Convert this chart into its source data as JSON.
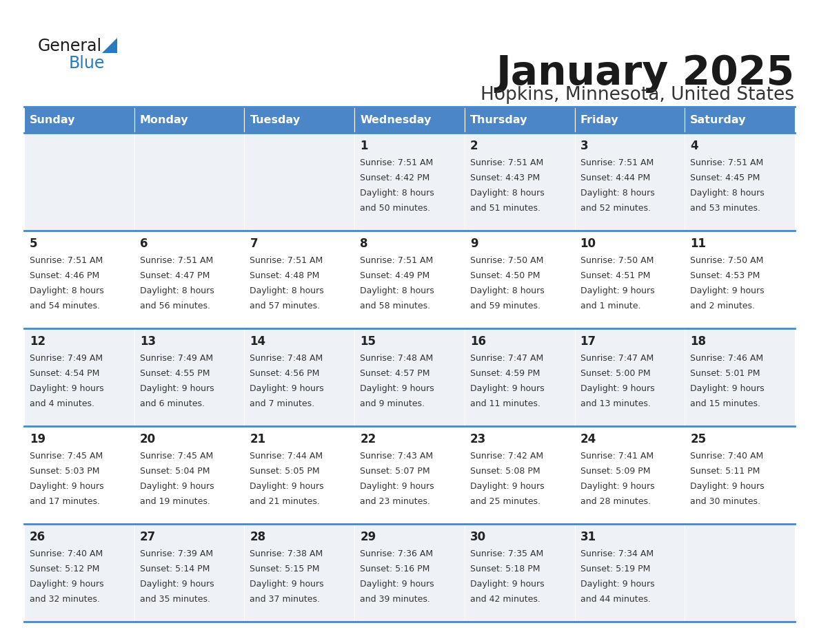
{
  "title": "January 2025",
  "subtitle": "Hopkins, Minnesota, United States",
  "days_of_week": [
    "Sunday",
    "Monday",
    "Tuesday",
    "Wednesday",
    "Thursday",
    "Friday",
    "Saturday"
  ],
  "header_bg": "#4a86c8",
  "header_text": "#ffffff",
  "row_bg_odd": "#eef2f7",
  "row_bg_even": "#ffffff",
  "cell_border": "#4a86c8",
  "day_num_color": "#222222",
  "text_color": "#333333",
  "logo_general_color": "#222222",
  "logo_blue_color": "#2a7abf",
  "calendar_data": [
    [
      {
        "day": null,
        "sunrise": null,
        "sunset": null,
        "daylight": null
      },
      {
        "day": null,
        "sunrise": null,
        "sunset": null,
        "daylight": null
      },
      {
        "day": null,
        "sunrise": null,
        "sunset": null,
        "daylight": null
      },
      {
        "day": "1",
        "sunrise": "7:51 AM",
        "sunset": "4:42 PM",
        "daylight": "8 hours",
        "daylight2": "and 50 minutes."
      },
      {
        "day": "2",
        "sunrise": "7:51 AM",
        "sunset": "4:43 PM",
        "daylight": "8 hours",
        "daylight2": "and 51 minutes."
      },
      {
        "day": "3",
        "sunrise": "7:51 AM",
        "sunset": "4:44 PM",
        "daylight": "8 hours",
        "daylight2": "and 52 minutes."
      },
      {
        "day": "4",
        "sunrise": "7:51 AM",
        "sunset": "4:45 PM",
        "daylight": "8 hours",
        "daylight2": "and 53 minutes."
      }
    ],
    [
      {
        "day": "5",
        "sunrise": "7:51 AM",
        "sunset": "4:46 PM",
        "daylight": "8 hours",
        "daylight2": "and 54 minutes."
      },
      {
        "day": "6",
        "sunrise": "7:51 AM",
        "sunset": "4:47 PM",
        "daylight": "8 hours",
        "daylight2": "and 56 minutes."
      },
      {
        "day": "7",
        "sunrise": "7:51 AM",
        "sunset": "4:48 PM",
        "daylight": "8 hours",
        "daylight2": "and 57 minutes."
      },
      {
        "day": "8",
        "sunrise": "7:51 AM",
        "sunset": "4:49 PM",
        "daylight": "8 hours",
        "daylight2": "and 58 minutes."
      },
      {
        "day": "9",
        "sunrise": "7:50 AM",
        "sunset": "4:50 PM",
        "daylight": "8 hours",
        "daylight2": "and 59 minutes."
      },
      {
        "day": "10",
        "sunrise": "7:50 AM",
        "sunset": "4:51 PM",
        "daylight": "9 hours",
        "daylight2": "and 1 minute."
      },
      {
        "day": "11",
        "sunrise": "7:50 AM",
        "sunset": "4:53 PM",
        "daylight": "9 hours",
        "daylight2": "and 2 minutes."
      }
    ],
    [
      {
        "day": "12",
        "sunrise": "7:49 AM",
        "sunset": "4:54 PM",
        "daylight": "9 hours",
        "daylight2": "and 4 minutes."
      },
      {
        "day": "13",
        "sunrise": "7:49 AM",
        "sunset": "4:55 PM",
        "daylight": "9 hours",
        "daylight2": "and 6 minutes."
      },
      {
        "day": "14",
        "sunrise": "7:48 AM",
        "sunset": "4:56 PM",
        "daylight": "9 hours",
        "daylight2": "and 7 minutes."
      },
      {
        "day": "15",
        "sunrise": "7:48 AM",
        "sunset": "4:57 PM",
        "daylight": "9 hours",
        "daylight2": "and 9 minutes."
      },
      {
        "day": "16",
        "sunrise": "7:47 AM",
        "sunset": "4:59 PM",
        "daylight": "9 hours",
        "daylight2": "and 11 minutes."
      },
      {
        "day": "17",
        "sunrise": "7:47 AM",
        "sunset": "5:00 PM",
        "daylight": "9 hours",
        "daylight2": "and 13 minutes."
      },
      {
        "day": "18",
        "sunrise": "7:46 AM",
        "sunset": "5:01 PM",
        "daylight": "9 hours",
        "daylight2": "and 15 minutes."
      }
    ],
    [
      {
        "day": "19",
        "sunrise": "7:45 AM",
        "sunset": "5:03 PM",
        "daylight": "9 hours",
        "daylight2": "and 17 minutes."
      },
      {
        "day": "20",
        "sunrise": "7:45 AM",
        "sunset": "5:04 PM",
        "daylight": "9 hours",
        "daylight2": "and 19 minutes."
      },
      {
        "day": "21",
        "sunrise": "7:44 AM",
        "sunset": "5:05 PM",
        "daylight": "9 hours",
        "daylight2": "and 21 minutes."
      },
      {
        "day": "22",
        "sunrise": "7:43 AM",
        "sunset": "5:07 PM",
        "daylight": "9 hours",
        "daylight2": "and 23 minutes."
      },
      {
        "day": "23",
        "sunrise": "7:42 AM",
        "sunset": "5:08 PM",
        "daylight": "9 hours",
        "daylight2": "and 25 minutes."
      },
      {
        "day": "24",
        "sunrise": "7:41 AM",
        "sunset": "5:09 PM",
        "daylight": "9 hours",
        "daylight2": "and 28 minutes."
      },
      {
        "day": "25",
        "sunrise": "7:40 AM",
        "sunset": "5:11 PM",
        "daylight": "9 hours",
        "daylight2": "and 30 minutes."
      }
    ],
    [
      {
        "day": "26",
        "sunrise": "7:40 AM",
        "sunset": "5:12 PM",
        "daylight": "9 hours",
        "daylight2": "and 32 minutes."
      },
      {
        "day": "27",
        "sunrise": "7:39 AM",
        "sunset": "5:14 PM",
        "daylight": "9 hours",
        "daylight2": "and 35 minutes."
      },
      {
        "day": "28",
        "sunrise": "7:38 AM",
        "sunset": "5:15 PM",
        "daylight": "9 hours",
        "daylight2": "and 37 minutes."
      },
      {
        "day": "29",
        "sunrise": "7:36 AM",
        "sunset": "5:16 PM",
        "daylight": "9 hours",
        "daylight2": "and 39 minutes."
      },
      {
        "day": "30",
        "sunrise": "7:35 AM",
        "sunset": "5:18 PM",
        "daylight": "9 hours",
        "daylight2": "and 42 minutes."
      },
      {
        "day": "31",
        "sunrise": "7:34 AM",
        "sunset": "5:19 PM",
        "daylight": "9 hours",
        "daylight2": "and 44 minutes."
      },
      {
        "day": null,
        "sunrise": null,
        "sunset": null,
        "daylight": null,
        "daylight2": null
      }
    ]
  ]
}
